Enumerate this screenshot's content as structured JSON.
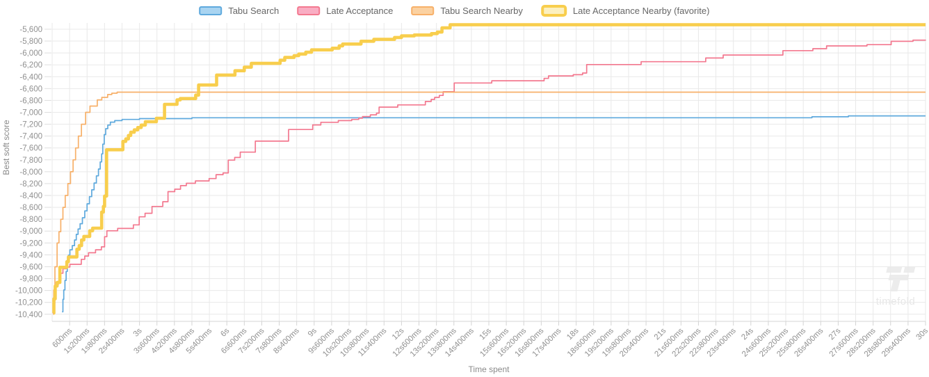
{
  "watermark": {
    "text": "timefold"
  },
  "axes": {
    "x_title": "Time spent",
    "y_title": "Best soft score",
    "y_tick_labels": [
      "-5,600",
      "-5,800",
      "-6,000",
      "-6,200",
      "-6,400",
      "-6,600",
      "-6,800",
      "-7,000",
      "-7,200",
      "-7,400",
      "-7,600",
      "-7,800",
      "-8,000",
      "-8,200",
      "-8,400",
      "-8,600",
      "-8,800",
      "-9,000",
      "-9,200",
      "-9,400",
      "-9,600",
      "-9,800",
      "-10,000",
      "-10,200",
      "-10,400"
    ],
    "x_tick_labels": [
      "600ms",
      "1s200ms",
      "1s800ms",
      "2s400ms",
      "3s",
      "3s600ms",
      "4s200ms",
      "4s800ms",
      "5s400ms",
      "6s",
      "6s600ms",
      "7s200ms",
      "7s800ms",
      "8s400ms",
      "9s",
      "9s600ms",
      "10s200ms",
      "10s800ms",
      "11s400ms",
      "12s",
      "12s600ms",
      "13s200ms",
      "13s800ms",
      "14s400ms",
      "15s",
      "15s600ms",
      "16s200ms",
      "16s800ms",
      "17s400ms",
      "18s",
      "18s600ms",
      "19s200ms",
      "19s800ms",
      "20s400ms",
      "21s",
      "21s600ms",
      "22s200ms",
      "22s800ms",
      "23s400ms",
      "24s",
      "24s600ms",
      "25s200ms",
      "25s800ms",
      "26s400ms",
      "27s",
      "27s600ms",
      "28s200ms",
      "28s800ms",
      "29s400ms",
      "30s"
    ]
  },
  "style": {
    "grid_color": "#e9e9e9",
    "axis_line_color": "#d4d4d4",
    "tick_mark_color": "#dedede",
    "tick_label_color": "#909090",
    "watermark_color": "#ececec"
  },
  "chart_data": {
    "type": "line",
    "step": true,
    "title": "",
    "xlabel": "Time spent",
    "ylabel": "Best soft score",
    "x_unit": "ms",
    "x_range_ms": [
      0,
      30000
    ],
    "x_tick_interval_ms": 600,
    "y_ticks": [
      -5600,
      -5800,
      -6000,
      -6200,
      -6400,
      -6600,
      -6800,
      -7000,
      -7200,
      -7400,
      -7600,
      -7800,
      -8000,
      -8200,
      -8400,
      -8600,
      -8800,
      -9000,
      -9200,
      -9400,
      -9600,
      -9800,
      -10000,
      -10200,
      -10400
    ],
    "ylim": [
      -10400,
      -5600
    ],
    "grid": true,
    "legend_position": "top-center",
    "series": [
      {
        "name": "Tabu Search",
        "color": "#5ea9dd",
        "fill": "#a9d4f1",
        "line_width": 1.7,
        "points": [
          [
            340,
            -10360
          ],
          [
            370,
            -10150
          ],
          [
            400,
            -9990
          ],
          [
            440,
            -9830
          ],
          [
            480,
            -9680
          ],
          [
            520,
            -9490
          ],
          [
            560,
            -9405
          ],
          [
            610,
            -9315
          ],
          [
            690,
            -9245
          ],
          [
            770,
            -9150
          ],
          [
            830,
            -9055
          ],
          [
            890,
            -8965
          ],
          [
            960,
            -8875
          ],
          [
            1040,
            -8775
          ],
          [
            1120,
            -8660
          ],
          [
            1200,
            -8540
          ],
          [
            1280,
            -8420
          ],
          [
            1360,
            -8305
          ],
          [
            1440,
            -8190
          ],
          [
            1520,
            -8070
          ],
          [
            1590,
            -7955
          ],
          [
            1650,
            -7835
          ],
          [
            1700,
            -7700
          ],
          [
            1740,
            -7535
          ],
          [
            1790,
            -7375
          ],
          [
            1840,
            -7275
          ],
          [
            1910,
            -7215
          ],
          [
            2000,
            -7165
          ],
          [
            2150,
            -7140
          ],
          [
            2400,
            -7120
          ],
          [
            3000,
            -7105
          ],
          [
            4800,
            -7092
          ],
          [
            26100,
            -7075
          ],
          [
            27350,
            -7060
          ],
          [
            30000,
            -7060
          ]
        ]
      },
      {
        "name": "Late Acceptance",
        "color": "#f3788f",
        "fill": "#f9adc3",
        "line_width": 1.7,
        "points": [
          [
            20,
            -10380
          ],
          [
            50,
            -10220
          ],
          [
            90,
            -10030
          ],
          [
            130,
            -9905
          ],
          [
            210,
            -9845
          ],
          [
            290,
            -9710
          ],
          [
            370,
            -9635
          ],
          [
            490,
            -9605
          ],
          [
            610,
            -9560
          ],
          [
            1000,
            -9475
          ],
          [
            1120,
            -9420
          ],
          [
            1250,
            -9365
          ],
          [
            1490,
            -9315
          ],
          [
            1690,
            -9265
          ],
          [
            1800,
            -9095
          ],
          [
            1880,
            -8995
          ],
          [
            2250,
            -8955
          ],
          [
            2790,
            -8895
          ],
          [
            2990,
            -8760
          ],
          [
            3190,
            -8700
          ],
          [
            3430,
            -8585
          ],
          [
            3800,
            -8505
          ],
          [
            3980,
            -8335
          ],
          [
            4210,
            -8295
          ],
          [
            4410,
            -8235
          ],
          [
            4610,
            -8195
          ],
          [
            4920,
            -8155
          ],
          [
            5390,
            -8115
          ],
          [
            5630,
            -8050
          ],
          [
            5870,
            -8020
          ],
          [
            6050,
            -7805
          ],
          [
            6270,
            -7760
          ],
          [
            6460,
            -7670
          ],
          [
            6980,
            -7485
          ],
          [
            8120,
            -7290
          ],
          [
            8950,
            -7212
          ],
          [
            9230,
            -7168
          ],
          [
            9830,
            -7140
          ],
          [
            10290,
            -7120
          ],
          [
            10530,
            -7098
          ],
          [
            10660,
            -7072
          ],
          [
            10930,
            -7042
          ],
          [
            11140,
            -7014
          ],
          [
            11230,
            -6912
          ],
          [
            11870,
            -6875
          ],
          [
            12820,
            -6818
          ],
          [
            13020,
            -6782
          ],
          [
            13140,
            -6748
          ],
          [
            13300,
            -6716
          ],
          [
            13430,
            -6652
          ],
          [
            13810,
            -6506
          ],
          [
            15100,
            -6468
          ],
          [
            16900,
            -6428
          ],
          [
            17050,
            -6386
          ],
          [
            17900,
            -6366
          ],
          [
            18220,
            -6338
          ],
          [
            18360,
            -6196
          ],
          [
            20230,
            -6148
          ],
          [
            22450,
            -6085
          ],
          [
            23050,
            -6035
          ],
          [
            25100,
            -5961
          ],
          [
            26130,
            -5928
          ],
          [
            26600,
            -5882
          ],
          [
            27990,
            -5861
          ],
          [
            28820,
            -5804
          ],
          [
            29570,
            -5784
          ],
          [
            30000,
            -5780
          ]
        ]
      },
      {
        "name": "Tabu Search Nearby",
        "color": "#f7b069",
        "fill": "#fbd1a1",
        "line_width": 1.7,
        "points": [
          [
            30,
            -10400
          ],
          [
            55,
            -9990
          ],
          [
            95,
            -9600
          ],
          [
            170,
            -9200
          ],
          [
            235,
            -9010
          ],
          [
            295,
            -8800
          ],
          [
            370,
            -8600
          ],
          [
            450,
            -8400
          ],
          [
            540,
            -8200
          ],
          [
            630,
            -8000
          ],
          [
            720,
            -7800
          ],
          [
            805,
            -7600
          ],
          [
            900,
            -7400
          ],
          [
            1005,
            -7200
          ],
          [
            1150,
            -7000
          ],
          [
            1300,
            -6895
          ],
          [
            1550,
            -6790
          ],
          [
            1705,
            -6748
          ],
          [
            1905,
            -6700
          ],
          [
            2050,
            -6678
          ],
          [
            2230,
            -6660
          ],
          [
            30000,
            -6660
          ]
        ]
      },
      {
        "name": "Late Acceptance Nearby (favorite)",
        "color": "#f8ce4d",
        "fill": "#fcf0c0",
        "line_width": 4.6,
        "points": [
          [
            45,
            -10380
          ],
          [
            60,
            -10140
          ],
          [
            105,
            -9925
          ],
          [
            170,
            -9865
          ],
          [
            265,
            -9610
          ],
          [
            505,
            -9515
          ],
          [
            560,
            -9435
          ],
          [
            850,
            -9305
          ],
          [
            930,
            -9245
          ],
          [
            1010,
            -9150
          ],
          [
            1090,
            -9090
          ],
          [
            1290,
            -8995
          ],
          [
            1390,
            -8950
          ],
          [
            1700,
            -8680
          ],
          [
            1760,
            -8585
          ],
          [
            1800,
            -8410
          ],
          [
            1870,
            -7630
          ],
          [
            2430,
            -7490
          ],
          [
            2530,
            -7448
          ],
          [
            2620,
            -7390
          ],
          [
            2700,
            -7335
          ],
          [
            2820,
            -7295
          ],
          [
            2940,
            -7255
          ],
          [
            3060,
            -7215
          ],
          [
            3200,
            -7158
          ],
          [
            3580,
            -7100
          ],
          [
            3860,
            -6865
          ],
          [
            4290,
            -6790
          ],
          [
            4400,
            -6768
          ],
          [
            4930,
            -6710
          ],
          [
            5030,
            -6540
          ],
          [
            5650,
            -6372
          ],
          [
            6280,
            -6300
          ],
          [
            6600,
            -6240
          ],
          [
            6840,
            -6175
          ],
          [
            7830,
            -6123
          ],
          [
            7990,
            -6076
          ],
          [
            8310,
            -6045
          ],
          [
            8470,
            -6018
          ],
          [
            8710,
            -5988
          ],
          [
            8910,
            -5948
          ],
          [
            9620,
            -5920
          ],
          [
            9860,
            -5880
          ],
          [
            9980,
            -5850
          ],
          [
            10610,
            -5803
          ],
          [
            11050,
            -5772
          ],
          [
            11760,
            -5740
          ],
          [
            12000,
            -5713
          ],
          [
            12440,
            -5698
          ],
          [
            13030,
            -5674
          ],
          [
            13230,
            -5648
          ],
          [
            13390,
            -5578
          ],
          [
            13670,
            -5525
          ],
          [
            30000,
            -5525
          ]
        ]
      }
    ]
  }
}
